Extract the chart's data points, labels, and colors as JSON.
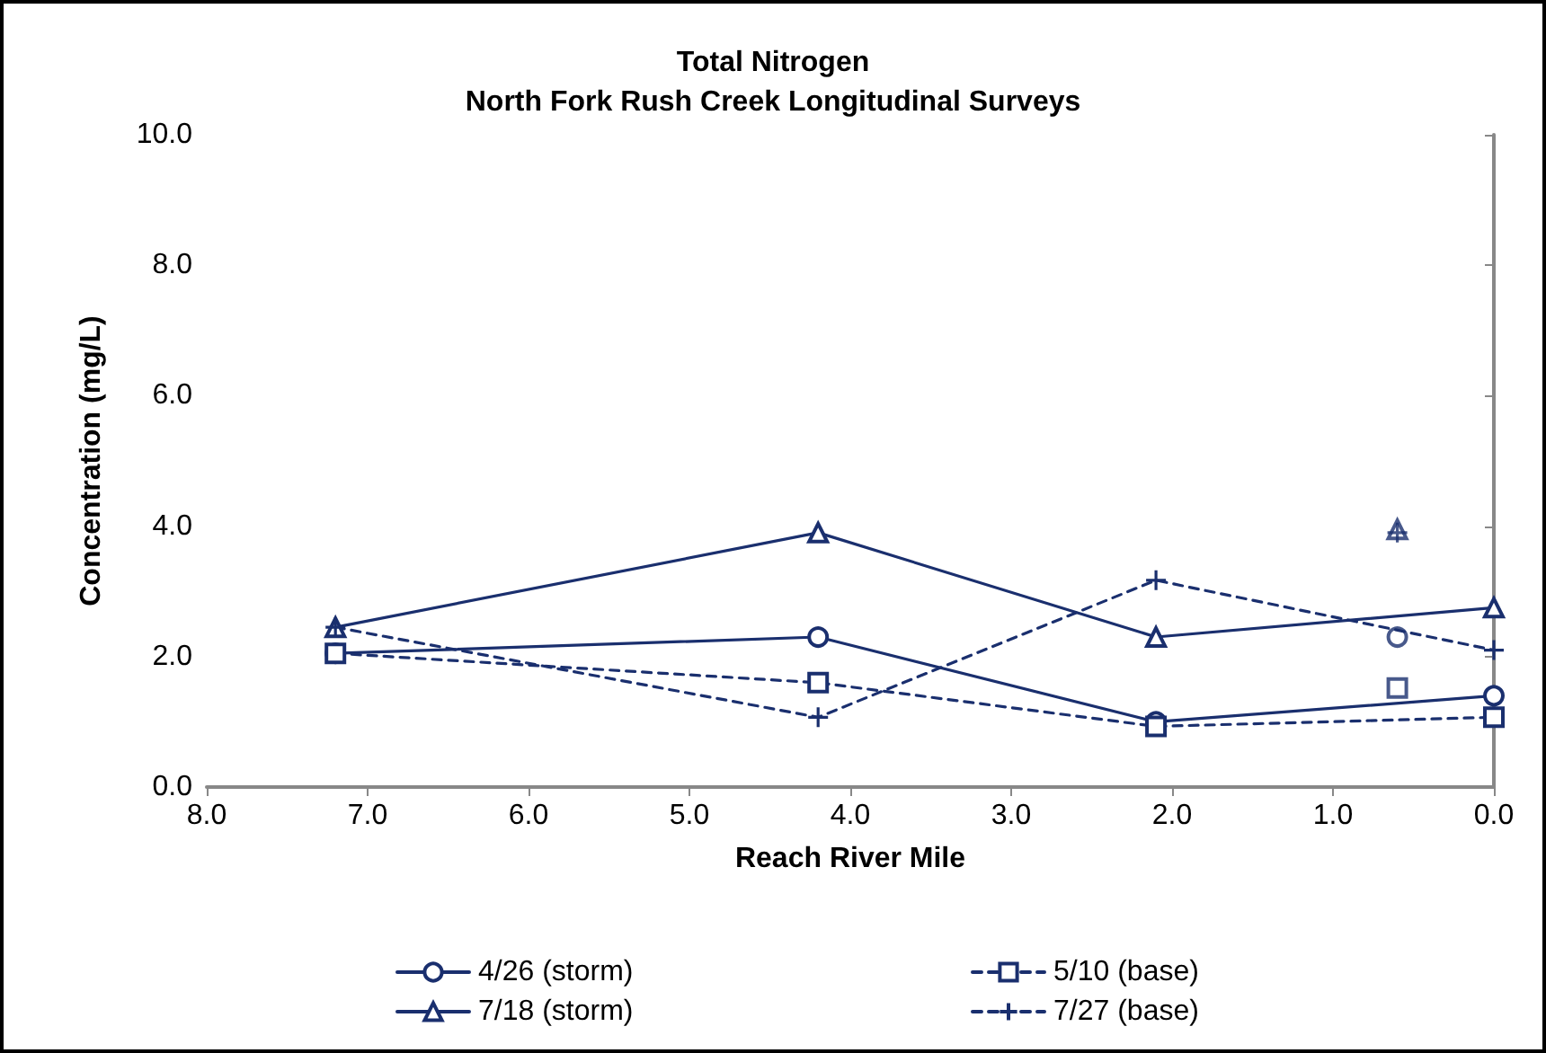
{
  "chart_data": {
    "type": "line",
    "title": "Total Nitrogen",
    "subtitle": "North Fork Rush Creek Longitudinal Surveys",
    "xlabel": "Reach River Mile",
    "ylabel": "Concentration (mg/L)",
    "xlim": [
      8,
      0
    ],
    "xticks": [
      {
        "value": 8,
        "label": "8.0"
      },
      {
        "value": 7,
        "label": "7.0"
      },
      {
        "value": 6,
        "label": "6.0"
      },
      {
        "value": 5,
        "label": "5.0"
      },
      {
        "value": 4,
        "label": "4.0"
      },
      {
        "value": 3,
        "label": "3.0"
      },
      {
        "value": 2,
        "label": "2.0"
      },
      {
        "value": 1,
        "label": "1.0"
      },
      {
        "value": 0,
        "label": "0.0"
      }
    ],
    "ylim": [
      0,
      10
    ],
    "yticks": [
      {
        "value": 0,
        "label": "0.0"
      },
      {
        "value": 2,
        "label": "2.0"
      },
      {
        "value": 4,
        "label": "4.0"
      },
      {
        "value": 6,
        "label": "6.0"
      },
      {
        "value": 8,
        "label": "8.0"
      },
      {
        "value": 10,
        "label": "10.0"
      }
    ],
    "grid": false,
    "legend": "bottom",
    "series": [
      {
        "name": "4/26 (storm)",
        "color": "#1a2f6e",
        "marker": "circle",
        "line_style": "solid",
        "x": [
          7.2,
          4.2,
          2.1,
          0
        ],
        "values": [
          2.05,
          2.3,
          1.0,
          1.4
        ]
      },
      {
        "name": "5/10 (base)",
        "color": "#1a2f6e",
        "marker": "square",
        "line_style": "dashed",
        "x": [
          7.2,
          4.2,
          2.1,
          0
        ],
        "values": [
          2.05,
          1.6,
          0.93,
          1.07
        ]
      },
      {
        "name": "7/18 (storm)",
        "color": "#1a2f6e",
        "marker": "triangle",
        "line_style": "solid",
        "x": [
          7.2,
          4.2,
          2.1,
          0
        ],
        "values": [
          2.45,
          3.9,
          2.3,
          2.75
        ]
      },
      {
        "name": "7/27 (base)",
        "color": "#1a2f6e",
        "marker": "cross",
        "line_style": "dashed",
        "x": [
          7.2,
          4.2,
          2.1,
          0
        ],
        "values": [
          2.45,
          1.07,
          3.17,
          2.1
        ]
      },
      {
        "type": "scatter",
        "color": "#1a2f6e",
        "marker": "circle",
        "x": [
          0.6
        ],
        "values": [
          2.3
        ]
      },
      {
        "type": "scatter",
        "color": "#1a2f6e",
        "marker": "square",
        "x": [
          0.6
        ],
        "values": [
          1.52
        ]
      },
      {
        "type": "scatter",
        "color": "#1a2f6e",
        "marker": "triangle",
        "x": [
          0.6
        ],
        "values": [
          3.95
        ]
      },
      {
        "type": "scatter",
        "color": "#1a2f6e",
        "marker": "cross",
        "x": [
          0.6
        ],
        "values": [
          3.9
        ]
      }
    ]
  }
}
